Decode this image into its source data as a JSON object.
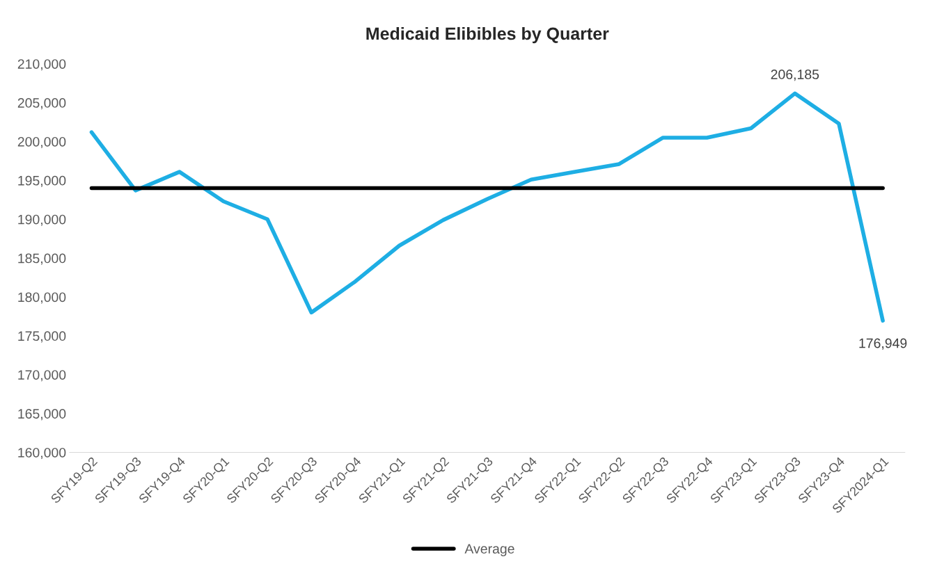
{
  "chart_data": {
    "type": "line",
    "title": "Medicaid Elibibles by Quarter",
    "categories": [
      "SFY19-Q2",
      "SFY19-Q3",
      "SFY19-Q4",
      "SFY20-Q1",
      "SFY20-Q2",
      "SFY20-Q3",
      "SFY20-Q4",
      "SFY21-Q1",
      "SFY21-Q2",
      "SFY21-Q3",
      "SFY21-Q4",
      "SFY22-Q1",
      "SFY22-Q2",
      "SFY22-Q3",
      "SFY22-Q4",
      "SFY23-Q1",
      "SFY23-Q3",
      "SFY23-Q4",
      "SFY2024-Q1"
    ],
    "series": [
      {
        "color": "#1eaee4",
        "values": [
          201200,
          193700,
          196100,
          192300,
          190000,
          178000,
          182000,
          186600,
          189900,
          192600,
          195100,
          196100,
          197100,
          200500,
          200500,
          201700,
          206185,
          202300,
          176949
        ],
        "value_labels": [
          null,
          null,
          null,
          null,
          null,
          null,
          null,
          null,
          null,
          null,
          null,
          null,
          null,
          null,
          null,
          null,
          "206,185",
          null,
          "176,949"
        ]
      },
      {
        "name": "Average",
        "color": "#000000",
        "values": [
          194000,
          194000,
          194000,
          194000,
          194000,
          194000,
          194000,
          194000,
          194000,
          194000,
          194000,
          194000,
          194000,
          194000,
          194000,
          194000,
          194000,
          194000,
          194000
        ]
      }
    ],
    "ylim": [
      160000,
      210000
    ],
    "yticks": [
      {
        "value": 160000,
        "label": "160,000"
      },
      {
        "value": 165000,
        "label": "165,000"
      },
      {
        "value": 170000,
        "label": "170,000"
      },
      {
        "value": 175000,
        "label": "175,000"
      },
      {
        "value": 180000,
        "label": "180,000"
      },
      {
        "value": 185000,
        "label": "185,000"
      },
      {
        "value": 190000,
        "label": "190,000"
      },
      {
        "value": 195000,
        "label": "195,000"
      },
      {
        "value": 200000,
        "label": "200,000"
      },
      {
        "value": 205000,
        "label": "205,000"
      },
      {
        "value": 210000,
        "label": "210,000"
      }
    ],
    "grid": false,
    "legend": "bottom",
    "marker": "none",
    "line_style": "solid"
  }
}
